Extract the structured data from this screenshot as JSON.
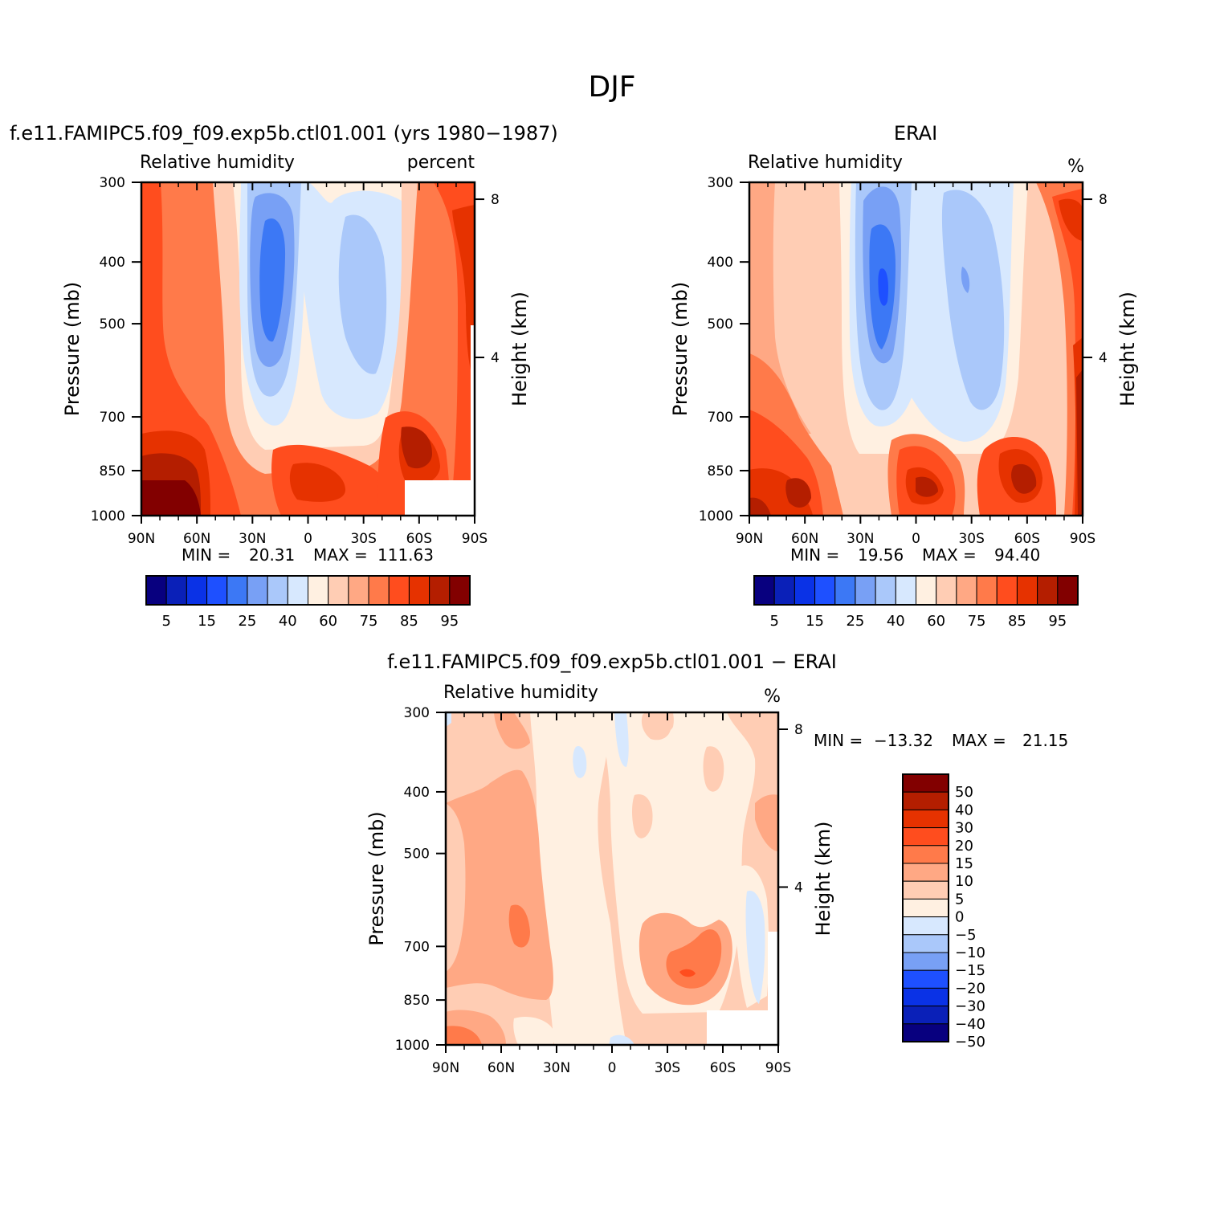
{
  "figure_title": "DJF",
  "palette_rh": [
    "#08007f",
    "#0a20b8",
    "#0a32e6",
    "#1e50ff",
    "#3c78f5",
    "#78a0f5",
    "#aac8fa",
    "#d7e8fe",
    "#fff0e1",
    "#ffcdb4",
    "#ffa884",
    "#ff7a4a",
    "#ff4d1e",
    "#e63200",
    "#b41e00",
    "#820000"
  ],
  "palette_diff": [
    "#08007f",
    "#0a20b8",
    "#0a32e6",
    "#1e50ff",
    "#78a0f5",
    "#aac8fa",
    "#d7e8fe",
    "#fff0e1",
    "#ffcdb4",
    "#ffa884",
    "#ff7a4a",
    "#ff4d1e",
    "#e63200",
    "#b41e00",
    "#820000"
  ],
  "chart_data": [
    {
      "type": "contour",
      "title": "f.e11.FAMIPC5.f09_f09.exp5b.ctl01.001 (yrs 1980−1987)",
      "left_label": "Relative humidity",
      "right_label": "percent",
      "ylabel": "Pressure (mb)",
      "y2label": "Height (km)",
      "x_ticks": [
        "90N",
        "60N",
        "30N",
        "0",
        "30S",
        "60S",
        "90S"
      ],
      "y_ticks": [
        "300",
        "400",
        "500",
        "700",
        "850",
        "1000"
      ],
      "y2_ticks": [
        "8",
        "4"
      ],
      "min_label": "MIN =",
      "min_value": "20.31",
      "max_label": "MAX =",
      "max_value": "111.63",
      "colorbar_labels": [
        "5",
        "15",
        "25",
        "40",
        "60",
        "75",
        "85",
        "95"
      ]
    },
    {
      "type": "contour",
      "title": "ERAI",
      "left_label": "Relative humidity",
      "right_label": "%",
      "ylabel": "Pressure (mb)",
      "y2label": "Height (km)",
      "x_ticks": [
        "90N",
        "60N",
        "30N",
        "0",
        "30S",
        "60S",
        "90S"
      ],
      "y_ticks": [
        "300",
        "400",
        "500",
        "700",
        "850",
        "1000"
      ],
      "y2_ticks": [
        "8",
        "4"
      ],
      "min_label": "MIN =",
      "min_value": "19.56",
      "max_label": "MAX =",
      "max_value": "94.40",
      "colorbar_labels": [
        "5",
        "15",
        "25",
        "40",
        "60",
        "75",
        "85",
        "95"
      ]
    },
    {
      "type": "contour",
      "title": "f.e11.FAMIPC5.f09_f09.exp5b.ctl01.001 − ERAI",
      "left_label": "Relative humidity",
      "right_label": "%",
      "ylabel": "Pressure (mb)",
      "y2label": "Height (km)",
      "x_ticks": [
        "90N",
        "60N",
        "30N",
        "0",
        "30S",
        "60S",
        "90S"
      ],
      "y_ticks": [
        "300",
        "400",
        "500",
        "700",
        "850",
        "1000"
      ],
      "y2_ticks": [
        "8",
        "4"
      ],
      "min_label": "MIN =",
      "min_value": "−13.32",
      "max_label": "MAX =",
      "max_value": "21.15",
      "colorbar_labels": [
        "50",
        "40",
        "30",
        "20",
        "15",
        "10",
        "5",
        "0",
        "−5",
        "−10",
        "−15",
        "−20",
        "−30",
        "−40",
        "−50"
      ]
    }
  ]
}
